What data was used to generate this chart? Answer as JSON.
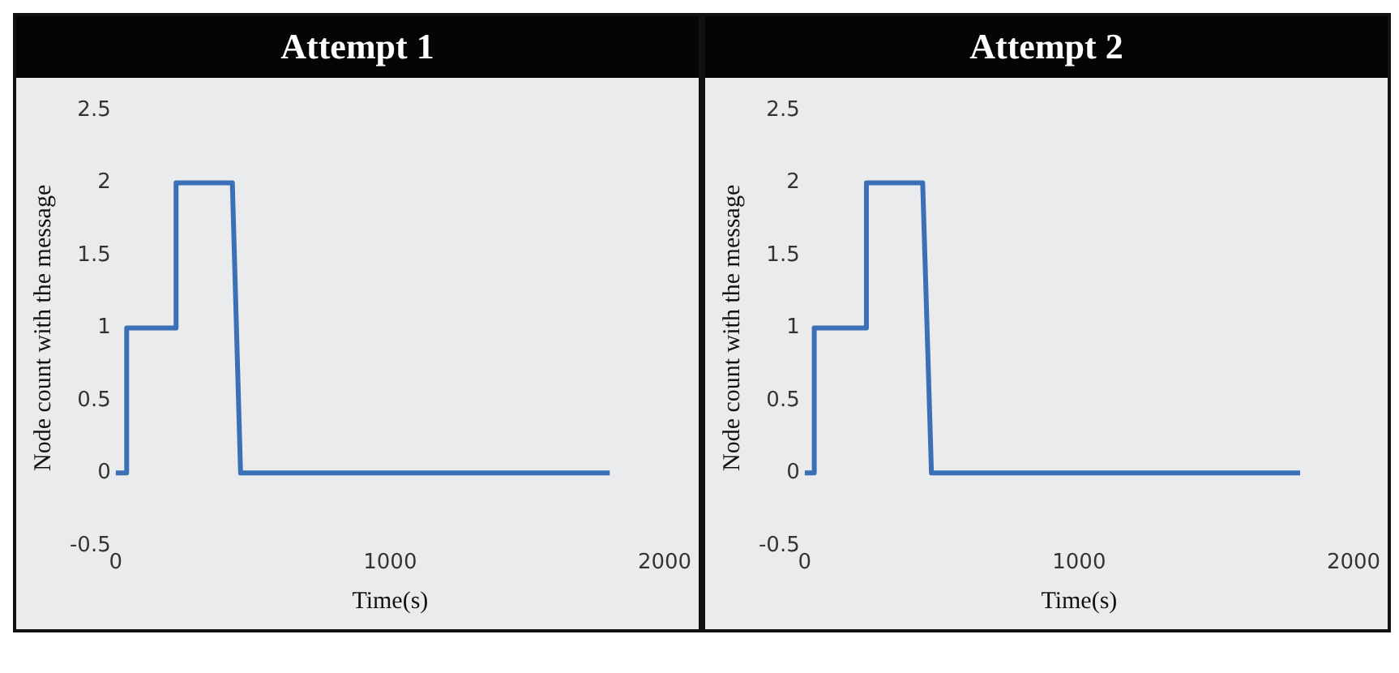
{
  "chart_data": [
    {
      "type": "line",
      "title": "Attempt 1",
      "xlabel": "Time(s)",
      "ylabel": "Node count with the message",
      "xlim": [
        0,
        2000
      ],
      "xticks": [
        0,
        1000,
        2000
      ],
      "ylim": [
        -0.5,
        2.5
      ],
      "yticks": [
        -0.5,
        0,
        0.5,
        1,
        1.5,
        2,
        2.5
      ],
      "grid": false,
      "legend": false,
      "marker": "none",
      "line_style": "solid",
      "series": [
        {
          "color": "#3b6fb6",
          "x": [
            0,
            40,
            40,
            220,
            220,
            425,
            455,
            1800
          ],
          "values": [
            0,
            0,
            1,
            1,
            2,
            2,
            0,
            0
          ]
        }
      ]
    },
    {
      "type": "line",
      "title": "Attempt 2",
      "xlabel": "Time(s)",
      "ylabel": "Node count with the message",
      "xlim": [
        0,
        2000
      ],
      "xticks": [
        0,
        1000,
        2000
      ],
      "ylim": [
        -0.5,
        2.5
      ],
      "yticks": [
        -0.5,
        0,
        0.5,
        1,
        1.5,
        2,
        2.5
      ],
      "grid": false,
      "legend": false,
      "marker": "none",
      "line_style": "solid",
      "series": [
        {
          "color": "#3b6fb6",
          "x": [
            0,
            35,
            35,
            225,
            225,
            430,
            462,
            1805
          ],
          "values": [
            0,
            0,
            1,
            1,
            2,
            2,
            0,
            0
          ]
        }
      ]
    }
  ]
}
